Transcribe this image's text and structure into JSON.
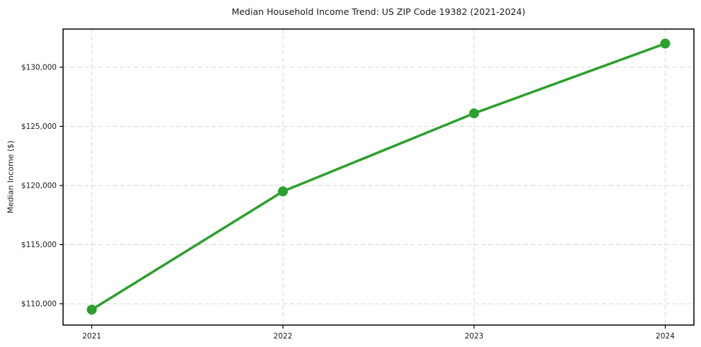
{
  "chart_data": {
    "type": "line",
    "title": "Median Household Income Trend: US ZIP Code 19382 (2021-2024)",
    "xlabel": "",
    "ylabel": "Median Income ($)",
    "x": [
      2021,
      2022,
      2023,
      2024
    ],
    "series": [
      {
        "name": "Median Household Income",
        "values": [
          109500,
          119500,
          126100,
          132000
        ],
        "color": "#2ca02c"
      }
    ],
    "xticks": [
      {
        "v": 2021,
        "label": "2021"
      },
      {
        "v": 2022,
        "label": "2022"
      },
      {
        "v": 2023,
        "label": "2023"
      },
      {
        "v": 2024,
        "label": "2024"
      }
    ],
    "yticks": [
      {
        "v": 110000,
        "label": "$110,000"
      },
      {
        "v": 115000,
        "label": "$115,000"
      },
      {
        "v": 120000,
        "label": "$120,000"
      },
      {
        "v": 125000,
        "label": "$125,000"
      },
      {
        "v": 130000,
        "label": "$130,000"
      }
    ],
    "xlim": [
      2020.85,
      2024.15
    ],
    "ylim": [
      108200,
      133230
    ],
    "grid": {
      "on": true,
      "color": "#d6d6d6",
      "style": "dashed"
    },
    "legend_position": "none",
    "axes_color": "#000000",
    "background_color": "#ffffff"
  }
}
